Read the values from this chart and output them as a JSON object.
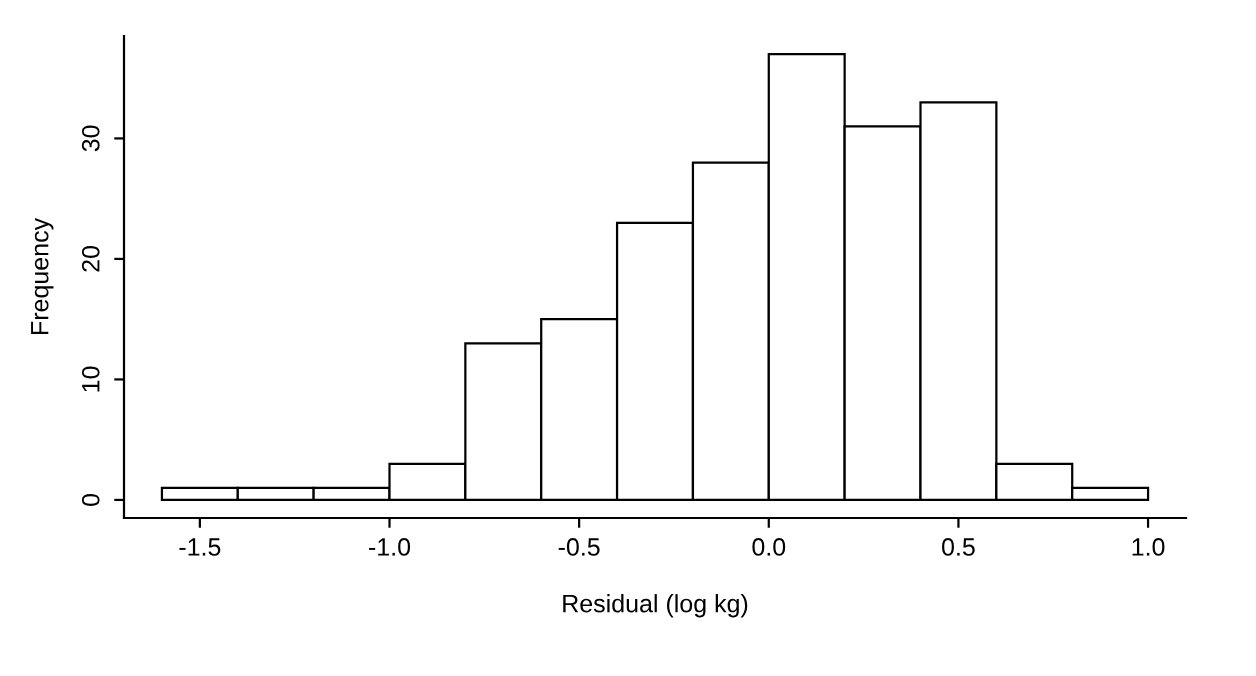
{
  "chart_data": {
    "type": "histogram",
    "xlabel": "Residual (log kg)",
    "ylabel": "Frequency",
    "bins": [
      -1.6,
      -1.4,
      -1.2,
      -1.0,
      -0.8,
      -0.6,
      -0.4,
      -0.2,
      0.0,
      0.2,
      0.4,
      0.6,
      0.8,
      1.0
    ],
    "values": [
      1,
      1,
      1,
      3,
      13,
      15,
      23,
      28,
      37,
      31,
      33,
      3,
      1
    ],
    "color": "#ffffff",
    "xlim": [
      -1.7,
      1.1
    ],
    "ylim": [
      -1.5,
      38.5
    ],
    "xticks": [
      {
        "value": -1.5,
        "label": "-1.5"
      },
      {
        "value": -1.0,
        "label": "-1.0"
      },
      {
        "value": -0.5,
        "label": "-0.5"
      },
      {
        "value": 0.0,
        "label": "0.0"
      },
      {
        "value": 0.5,
        "label": "0.5"
      },
      {
        "value": 1.0,
        "label": "1.0"
      }
    ],
    "yticks": [
      0,
      10,
      20,
      30
    ],
    "grid": false
  }
}
